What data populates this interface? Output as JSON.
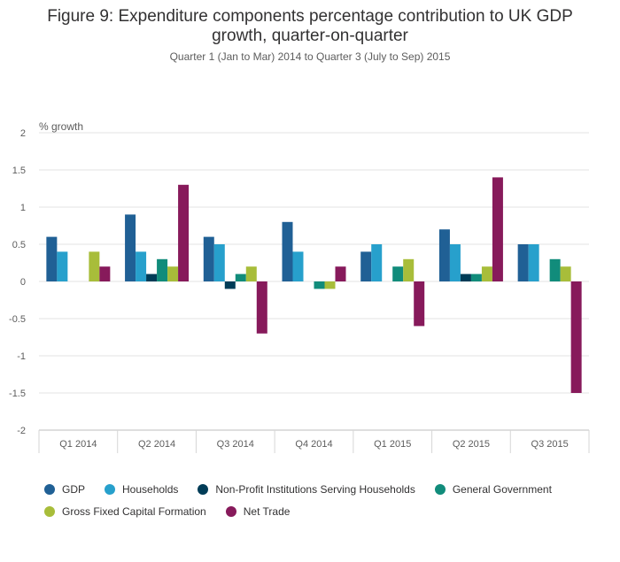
{
  "title_line_1": "Figure 9: Expenditure components percentage contribution to UK GDP",
  "title_line_2": "growth, quarter-on-quarter",
  "subtitle": "Quarter 1 (Jan to Mar) 2014 to Quarter 3 (July to Sep) 2015",
  "chart_data": {
    "type": "bar",
    "ylabel": "% growth",
    "ylim": [
      -2,
      2
    ],
    "yticks": [
      "2",
      "1.5",
      "1",
      "0.5",
      "0",
      "-0.5",
      "-1",
      "-1.5",
      "-2"
    ],
    "ytick_values": [
      2,
      1.5,
      1,
      0.5,
      0,
      -0.5,
      -1,
      -1.5,
      -2
    ],
    "grid": true,
    "legend_position": "bottom",
    "categories": [
      "Q1 2014",
      "Q2 2014",
      "Q3 2014",
      "Q4 2014",
      "Q1 2015",
      "Q2 2015",
      "Q3 2015"
    ],
    "series": [
      {
        "name": "GDP",
        "color": "#206095",
        "values": [
          0.6,
          0.9,
          0.6,
          0.8,
          0.4,
          0.7,
          0.5
        ]
      },
      {
        "name": "Households",
        "color": "#27a0cc",
        "values": [
          0.4,
          0.4,
          0.5,
          0.4,
          0.5,
          0.5,
          0.5
        ]
      },
      {
        "name": "Non-Profit Institutions Serving Households",
        "color": "#003c57",
        "values": [
          0.0,
          0.1,
          -0.1,
          0.0,
          0.0,
          0.1,
          0.0
        ]
      },
      {
        "name": "General Government",
        "color": "#118c7b",
        "values": [
          0.0,
          0.3,
          0.1,
          -0.1,
          0.2,
          0.1,
          0.3
        ]
      },
      {
        "name": "Gross Fixed Capital Formation",
        "color": "#a8bd3a",
        "values": [
          0.4,
          0.2,
          0.2,
          -0.1,
          0.3,
          0.2,
          0.2
        ]
      },
      {
        "name": "Net Trade",
        "color": "#871a5b",
        "values": [
          0.2,
          1.3,
          -0.7,
          0.2,
          -0.6,
          1.4,
          -1.5
        ]
      }
    ]
  }
}
